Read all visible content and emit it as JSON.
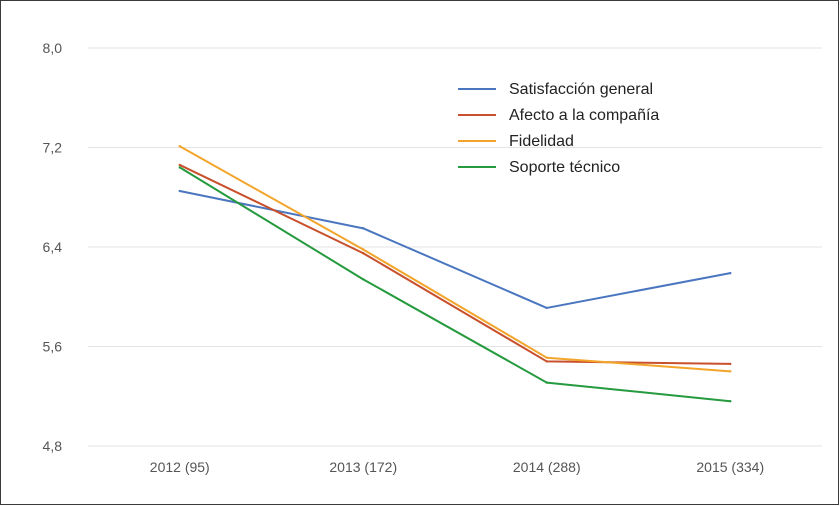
{
  "chart_data": {
    "type": "line",
    "title": "",
    "xlabel": "",
    "ylabel": "",
    "categories": [
      "2012 (95)",
      "2013 (172)",
      "2014 (288)",
      "2015 (334)"
    ],
    "ylim": [
      4.8,
      8.0
    ],
    "yticks": [
      "8,0",
      "7,2",
      "6,4",
      "5,6",
      "4,8"
    ],
    "grid": "horizontal",
    "legend_position": "top-right",
    "series": [
      {
        "name": "Satisfacción general",
        "color": "#4a76c0",
        "values": [
          6.85,
          6.55,
          5.91,
          6.19
        ]
      },
      {
        "name": "Afecto a la compañía",
        "color": "#c9502c",
        "values": [
          7.06,
          6.35,
          5.48,
          5.46
        ]
      },
      {
        "name": "Fidelidad",
        "color": "#f2a52a",
        "values": [
          7.21,
          6.38,
          5.51,
          5.4
        ]
      },
      {
        "name": "Soporte técnico",
        "color": "#259a3e",
        "values": [
          7.04,
          6.14,
          5.31,
          5.16
        ]
      }
    ]
  }
}
